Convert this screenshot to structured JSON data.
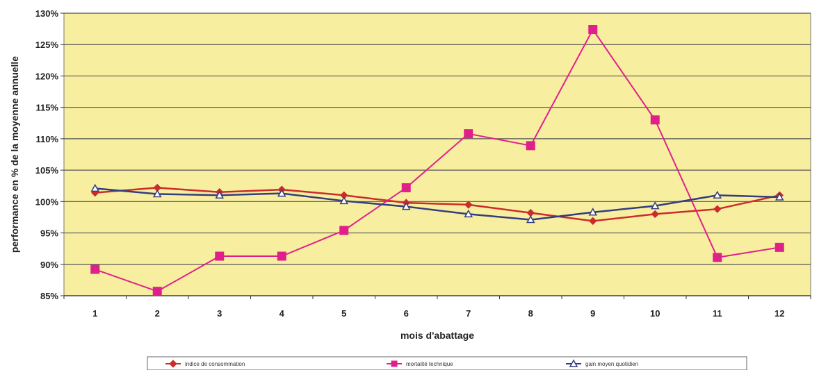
{
  "chart_data": {
    "type": "line",
    "xlabel": "mois d'abattage",
    "ylabel": "performance en % de la moyenne annuelle",
    "categories": [
      "1",
      "2",
      "3",
      "4",
      "5",
      "6",
      "7",
      "8",
      "9",
      "10",
      "11",
      "12"
    ],
    "ylim": [
      85,
      130
    ],
    "yticks": [
      "85%",
      "90%",
      "95%",
      "100%",
      "105%",
      "110%",
      "115%",
      "120%",
      "125%",
      "130%"
    ],
    "grid": true,
    "legend_position": "bottom",
    "background_color": "#f7ef9f",
    "series": [
      {
        "name": "indice de consommation",
        "color": "#cc2b2b",
        "marker": "diamond",
        "values": [
          101.4,
          102.2,
          101.5,
          101.9,
          101.0,
          99.8,
          99.5,
          98.2,
          96.9,
          98.0,
          98.8,
          101.0
        ]
      },
      {
        "name": "mortalité technique",
        "color": "#e0208a",
        "marker": "square",
        "values": [
          89.2,
          85.7,
          91.3,
          91.3,
          95.4,
          102.2,
          110.8,
          108.9,
          127.4,
          113.0,
          91.1,
          92.7
        ]
      },
      {
        "name": "gain moyen quotidien",
        "color": "#333c80",
        "marker": "triangle",
        "values": [
          102.1,
          101.2,
          101.0,
          101.3,
          100.1,
          99.2,
          98.0,
          97.1,
          98.3,
          99.3,
          101.0,
          100.7
        ]
      }
    ]
  }
}
